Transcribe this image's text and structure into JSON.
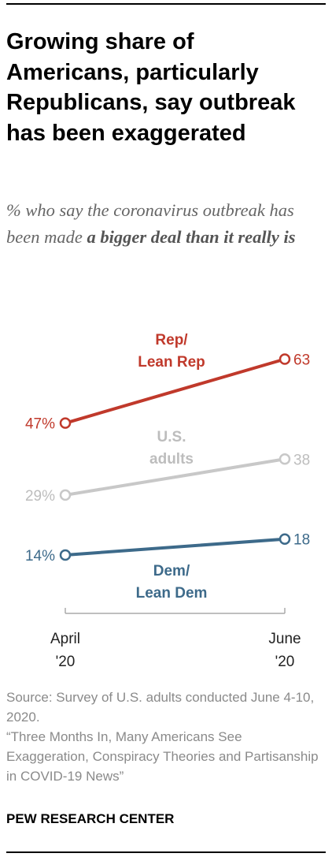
{
  "title": "Growing share of Americans, particularly Republicans, say outbreak has been exaggerated",
  "subtitle_plain": "% who say the coronavirus outbreak has been made ",
  "subtitle_bold": "a bigger deal than it really is",
  "source_line1": "Source: Survey of U.S. adults conducted June 4-10, 2020.",
  "source_line2": "“Three Months In, Many Americans See Exaggeration, Conspiracy Theories and Partisanship in COVID-19 News”",
  "brand": "PEW RESEARCH CENTER",
  "chart_data": {
    "type": "line",
    "categories": [
      "April '20",
      "June '20"
    ],
    "x_tick_labels": [
      [
        "April",
        "'20"
      ],
      [
        "June",
        "'20"
      ]
    ],
    "ylim": [
      0,
      70
    ],
    "grid": false,
    "series": [
      {
        "name": "Rep/ Lean Rep",
        "label_lines": [
          "Rep/",
          "Lean Rep"
        ],
        "values": [
          47,
          63
        ],
        "value_labels": [
          "47%",
          "63"
        ],
        "color": "#c0392b"
      },
      {
        "name": "U.S. adults",
        "label_lines": [
          "U.S.",
          "adults"
        ],
        "values": [
          29,
          38
        ],
        "value_labels": [
          "29%",
          "38"
        ],
        "color": "#c8c8c8"
      },
      {
        "name": "Dem/ Lean Dem",
        "label_lines": [
          "Dem/",
          "Lean Dem"
        ],
        "values": [
          14,
          18
        ],
        "value_labels": [
          "14%",
          "18"
        ],
        "color": "#3d6a8a"
      }
    ]
  }
}
